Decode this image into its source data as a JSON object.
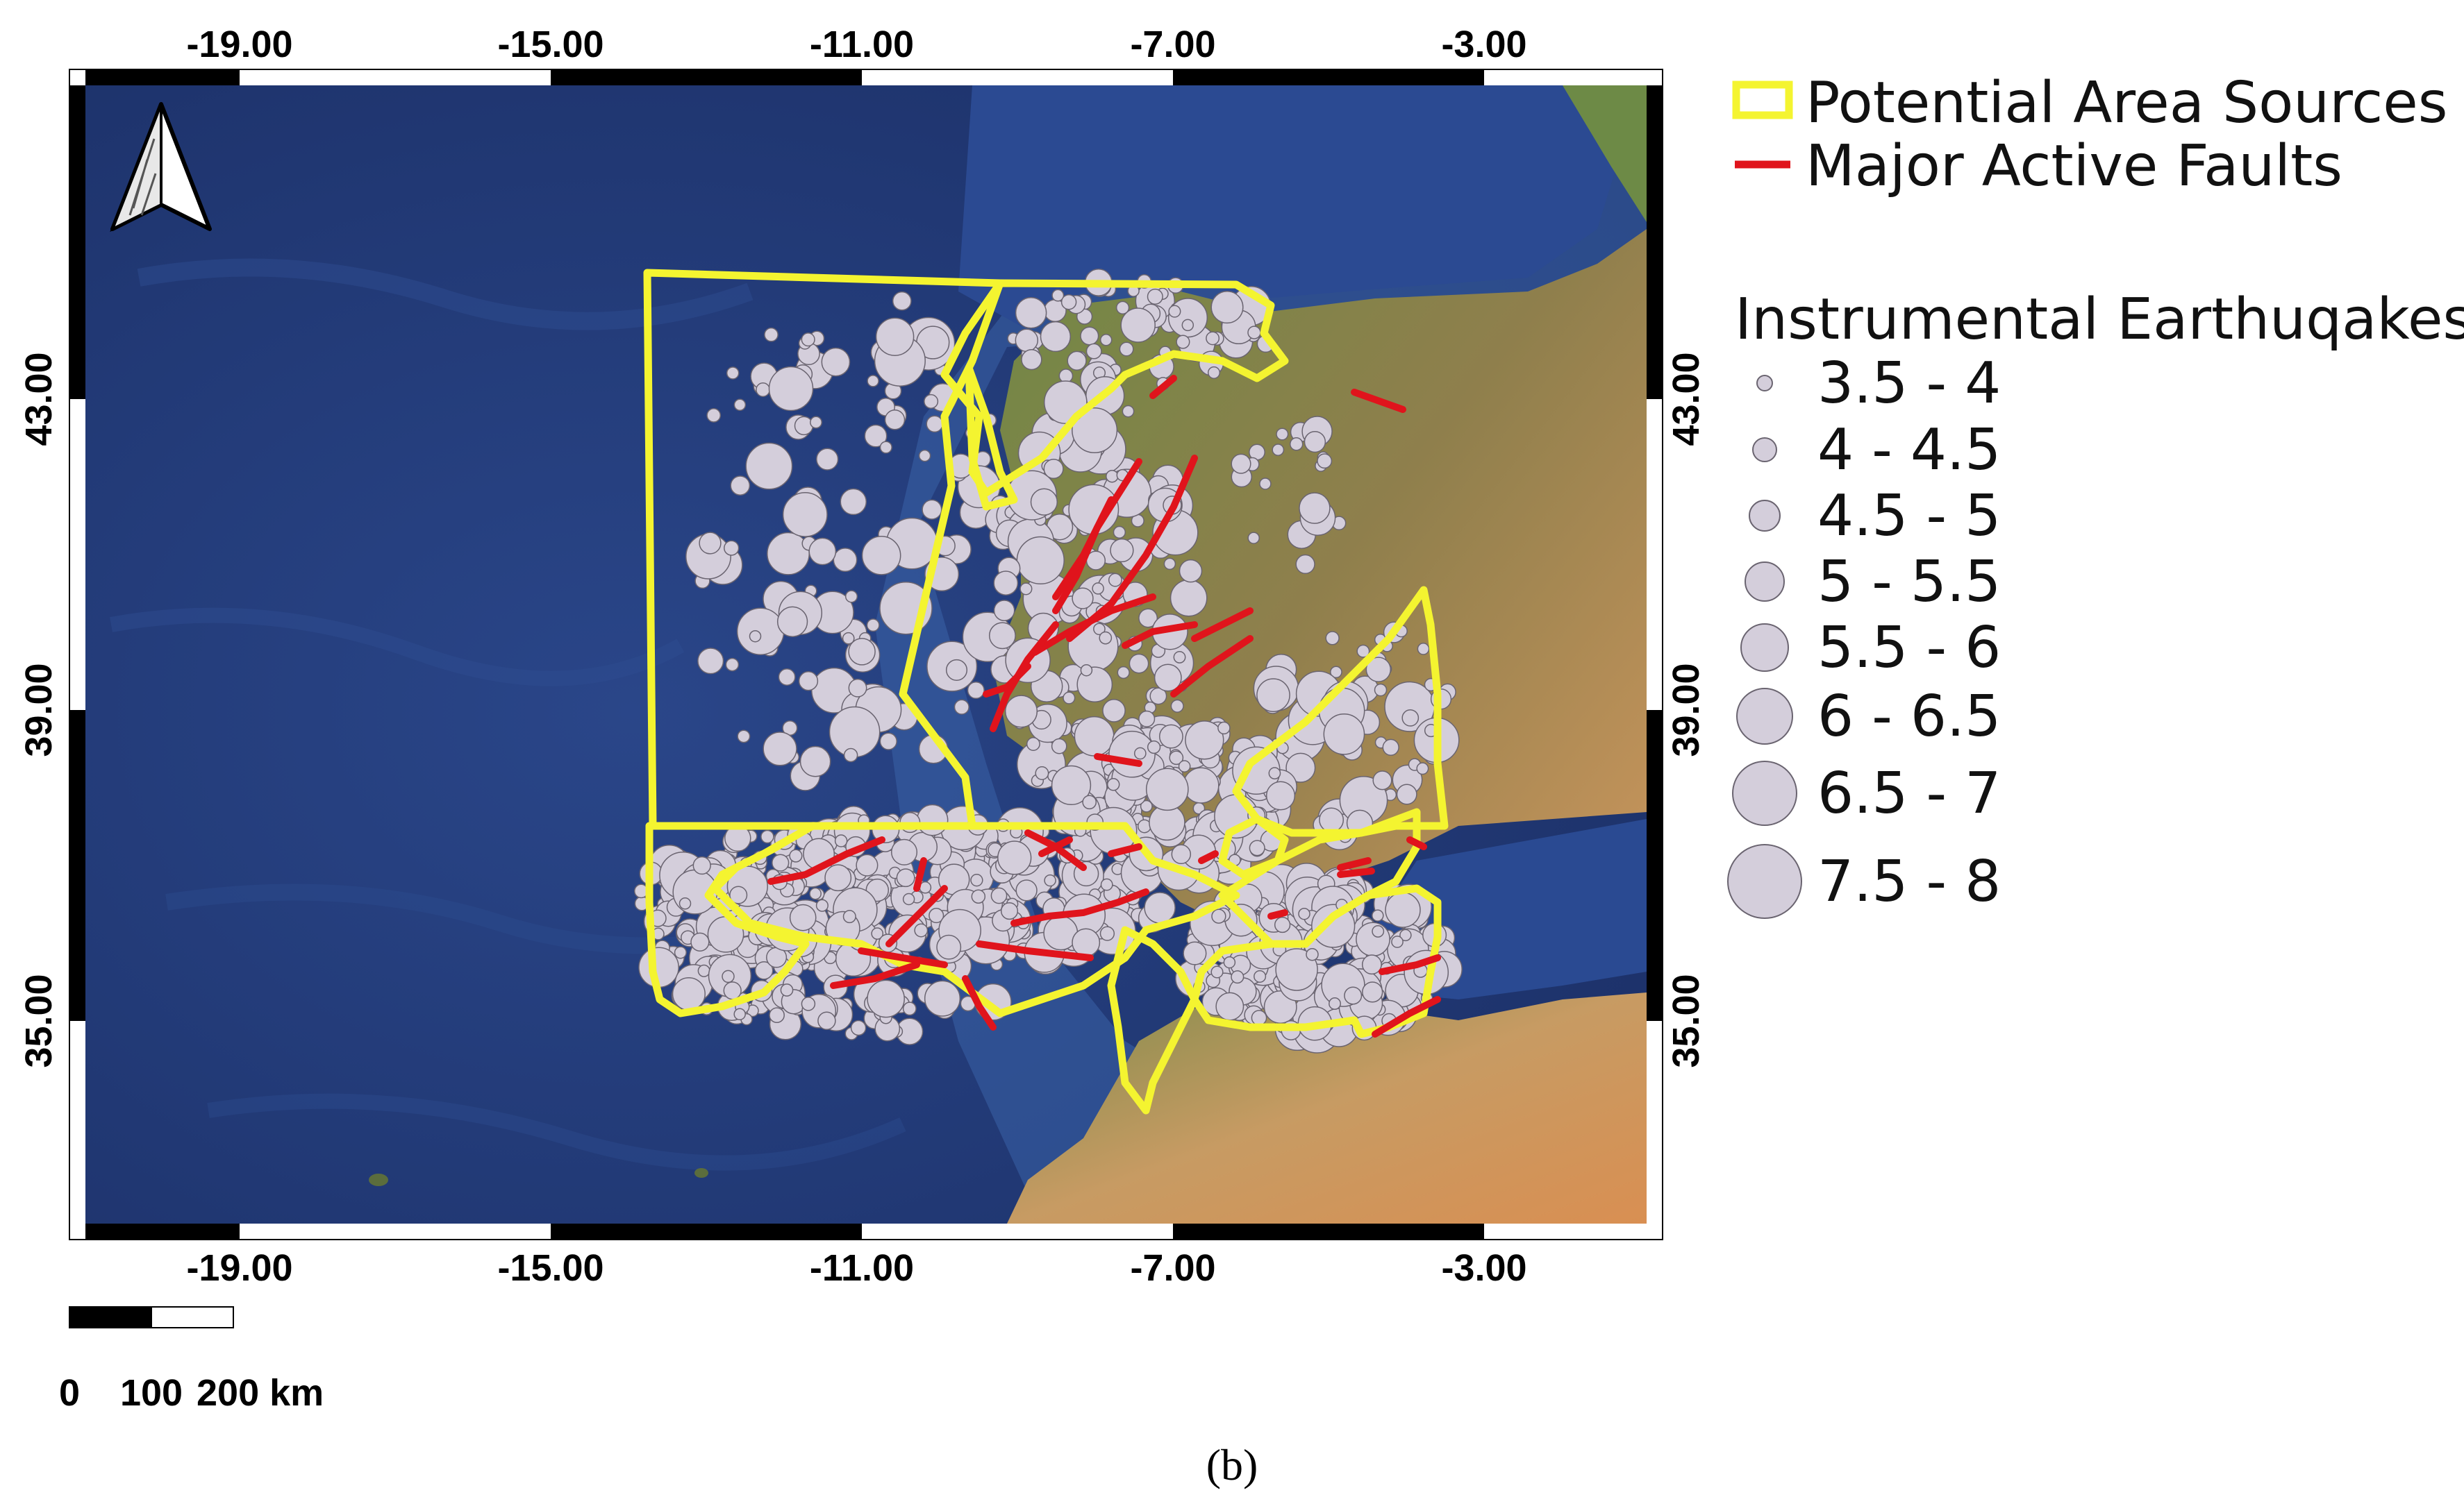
{
  "map": {
    "lon_ticks": [
      "-19.00",
      "-15.00",
      "-11.00",
      "-7.00",
      "-3.00"
    ],
    "lat_ticks": [
      "43.00",
      "39.00",
      "35.00"
    ],
    "colors": {
      "ocean": "#213a7a",
      "ocean_shelf": "#3f68b0",
      "land_green": "#5f7a3c",
      "land_dry": "#b88c58",
      "area_source": "#f4f430",
      "fault": "#e0141c",
      "quake_fill": "#d4cedb",
      "quake_stroke": "#6a6470"
    }
  },
  "legend": {
    "area_sources_label": "Potential Area Sources",
    "faults_label": "Major Active Faults",
    "earthquakes_title": "Instrumental Earthuqakes",
    "magnitude_classes": [
      "3.5 - 4",
      "4 - 4.5",
      "4.5 - 5",
      "5 - 5.5",
      "5.5 - 6",
      "6 - 6.5",
      "6.5 - 7",
      "7.5 - 8"
    ]
  },
  "scale_bar": {
    "labels": [
      "0",
      "100",
      "200 km"
    ]
  },
  "caption": "(b)",
  "icons": {
    "north_arrow": "north-arrow-icon"
  }
}
